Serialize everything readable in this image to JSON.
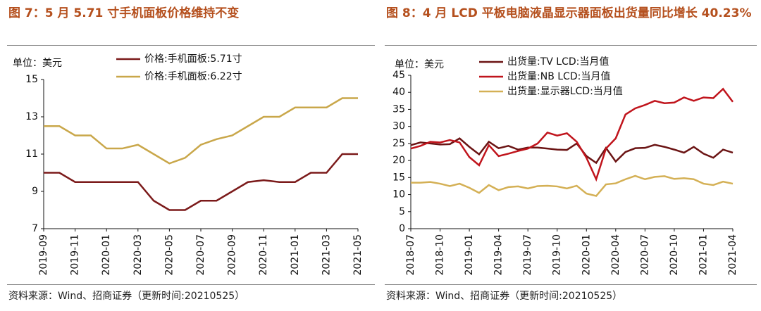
{
  "chart_data": [
    {
      "type": "line",
      "title": "图 7：5 月 5.71 寸手机面板价格维持不变",
      "unit": "单位：美元",
      "categories": [
        "2019-09",
        null,
        "2019-11",
        null,
        "2020-01",
        null,
        "2020-03",
        null,
        "2020-05",
        null,
        "2020-07",
        null,
        "2020-09",
        null,
        "2020-11",
        null,
        "2021-01",
        null,
        "2021-03",
        null,
        "2021-05"
      ],
      "series": [
        {
          "name": "价格:手机面板:5.71寸",
          "color": "#7b1a1a",
          "values": [
            10,
            10,
            9.5,
            9.5,
            9.5,
            9.5,
            9.5,
            8.5,
            8,
            8,
            8.5,
            8.5,
            9,
            9.5,
            9.6,
            9.5,
            9.5,
            10,
            10,
            11,
            11
          ]
        },
        {
          "name": "价格:手机面板:6.22寸",
          "color": "#c9a74a",
          "values": [
            12.5,
            12.5,
            12,
            12,
            11.3,
            11.3,
            11.5,
            11,
            10.5,
            10.8,
            11.5,
            11.8,
            12,
            12.5,
            13,
            13,
            13.5,
            13.5,
            13.5,
            14,
            14
          ]
        }
      ],
      "ylim": [
        7,
        15
      ],
      "yticks": [
        7,
        9,
        11,
        13,
        15
      ],
      "grid": false,
      "source": "资料来源：Wind、招商证券（更新时间:20210525）"
    },
    {
      "type": "line",
      "title": "图 8：4 月 LCD 平板电脑液晶显示器面板出货量同比增长 40.23%",
      "unit": "单位：美元",
      "categories": [
        "2018-07",
        null,
        null,
        "2018-10",
        null,
        null,
        "2019-01",
        null,
        null,
        "2019-04",
        null,
        null,
        "2019-07",
        null,
        null,
        "2019-10",
        null,
        null,
        "2020-01",
        null,
        null,
        "2020-04",
        null,
        null,
        "2020-07",
        null,
        null,
        "2020-10",
        null,
        null,
        "2021-01",
        null,
        null,
        "2021-04"
      ],
      "series": [
        {
          "name": "出货量:TV LCD:当月值",
          "color": "#6b1414",
          "values": [
            24.5,
            25.3,
            25,
            24.7,
            24.8,
            26.5,
            24,
            21.8,
            25.5,
            23.6,
            24.3,
            23.2,
            23.8,
            23.8,
            23.5,
            23.2,
            23.1,
            25,
            21.3,
            19.3,
            23.7,
            19.7,
            22.5,
            23.6,
            23.7,
            24.6,
            24,
            23.2,
            22.3,
            24,
            22,
            20.8,
            23.2,
            22.3
          ]
        },
        {
          "name": "出货量:NB LCD:当月值",
          "color": "#c0141c",
          "values": [
            23.5,
            24.3,
            25.5,
            25.3,
            26,
            25.3,
            21,
            18.6,
            24.5,
            21.3,
            22,
            22.8,
            23.5,
            25,
            28.2,
            27.3,
            28,
            25.5,
            20.8,
            14.5,
            23.5,
            26.5,
            33.5,
            35.3,
            36.3,
            37.5,
            36.8,
            37,
            38.5,
            37.5,
            38.5,
            38.3,
            41,
            37.2
          ]
        },
        {
          "name": "出货量:显示器LCD:当月值",
          "color": "#d4b055",
          "values": [
            13.5,
            13.5,
            13.7,
            13.2,
            12.5,
            13.2,
            12,
            10.5,
            12.8,
            11.3,
            12.2,
            12.4,
            11.8,
            12.5,
            12.6,
            12.4,
            11.8,
            12.6,
            10.3,
            9.6,
            13,
            13.3,
            14.5,
            15.5,
            14.5,
            15.2,
            15.4,
            14.6,
            14.8,
            14.5,
            13.2,
            12.8,
            13.8,
            13.2
          ]
        }
      ],
      "ylim": [
        0,
        45
      ],
      "yticks": [
        0,
        5,
        10,
        15,
        20,
        25,
        30,
        35,
        40,
        45
      ],
      "grid": false,
      "source": "资料来源：Wind、招商证券（更新时间:20210525）"
    }
  ]
}
